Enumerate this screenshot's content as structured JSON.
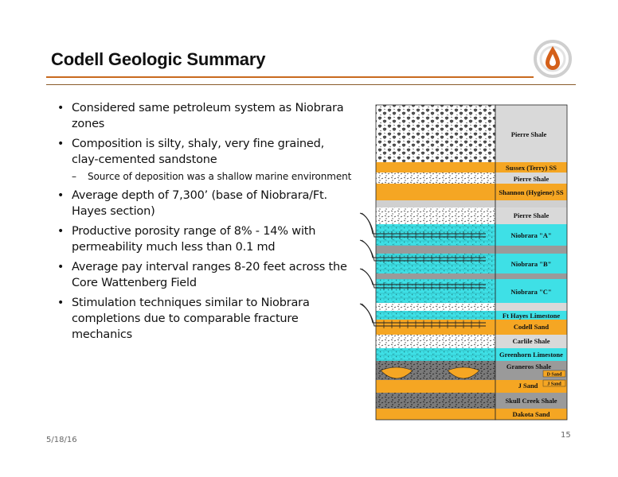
{
  "slide": {
    "title": "Codell Geologic Summary",
    "date": "5/18/16",
    "page_number": "15"
  },
  "bullets": [
    {
      "level": 1,
      "text": "Considered same petroleum system as Niobrara zones"
    },
    {
      "level": 1,
      "text": "Composition is silty, shaly, very fine grained, clay-cemented sandstone"
    },
    {
      "level": 2,
      "text": "Source of deposition was a shallow marine environment"
    },
    {
      "level": 1,
      "text": "Average depth of 7,300’ (base of Niobrara/Ft. Hayes section)"
    },
    {
      "level": 1,
      "text": "Productive porosity range of 8% - 14% with permeability much less than 0.1 md"
    },
    {
      "level": 1,
      "text": "Average pay interval ranges 8-20 feet across the Core Wattenberg Field"
    },
    {
      "level": 1,
      "text": "Stimulation techniques similar to Niobrara completions due to comparable fracture mechanics"
    }
  ],
  "column": {
    "layers": [
      "Pierre Shale",
      "Sussex (Terry) SS",
      "Pierre Shale",
      "Shannon (Hygiene) SS",
      "Pierre Shale",
      "Niobrara \"A\"",
      "Niobrara \"B\"",
      "Niobrara \"C\"",
      "Ft Hayes Limestone",
      "Codell Sand",
      "Carlile Shale",
      "Greenhorn Limestone",
      "Graneros Shale",
      "J Sand",
      "Skull Creek Shale",
      "Dakota Sand"
    ],
    "sub_labels": [
      "D Sand",
      "J Sand"
    ],
    "colors": {
      "sand": "#f5a623",
      "limestone": "#3ee0e6",
      "shale": "#d9d9d9",
      "dark_shale": "#8f8f8f",
      "accent": "#c86a1e"
    }
  }
}
